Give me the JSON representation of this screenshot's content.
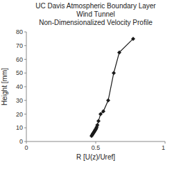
{
  "chart_data": {
    "type": "line",
    "title": "UC Davis Atmospheric Boundary Layer\nWind Tunnel\nNon-Dimensionalized Velocity Profile",
    "x_label": "R [U(z)/Uref]",
    "y_label": "Height [mm]",
    "x": [
      0.47,
      0.475,
      0.478,
      0.481,
      0.485,
      0.488,
      0.491,
      0.494,
      0.497,
      0.5,
      0.503,
      0.507,
      0.512,
      0.52,
      0.535,
      0.555,
      0.59,
      0.63,
      0.67,
      0.77
    ],
    "values": [
      4.0,
      4.8,
      5.5,
      6.0,
      6.5,
      7.0,
      7.5,
      8.0,
      8.5,
      9.0,
      9.5,
      10.5,
      12.0,
      15.0,
      20.0,
      22.0,
      30.0,
      50.0,
      65.0,
      75.0
    ],
    "color": "#1a1a1a",
    "marker": "diamond",
    "xlim": [
      0,
      1
    ],
    "ylim": [
      0,
      80
    ],
    "xticks": [
      0,
      0.5,
      1
    ],
    "yticks": [
      0,
      10,
      20,
      30,
      40,
      50,
      60,
      70,
      80
    ],
    "grid": false
  }
}
